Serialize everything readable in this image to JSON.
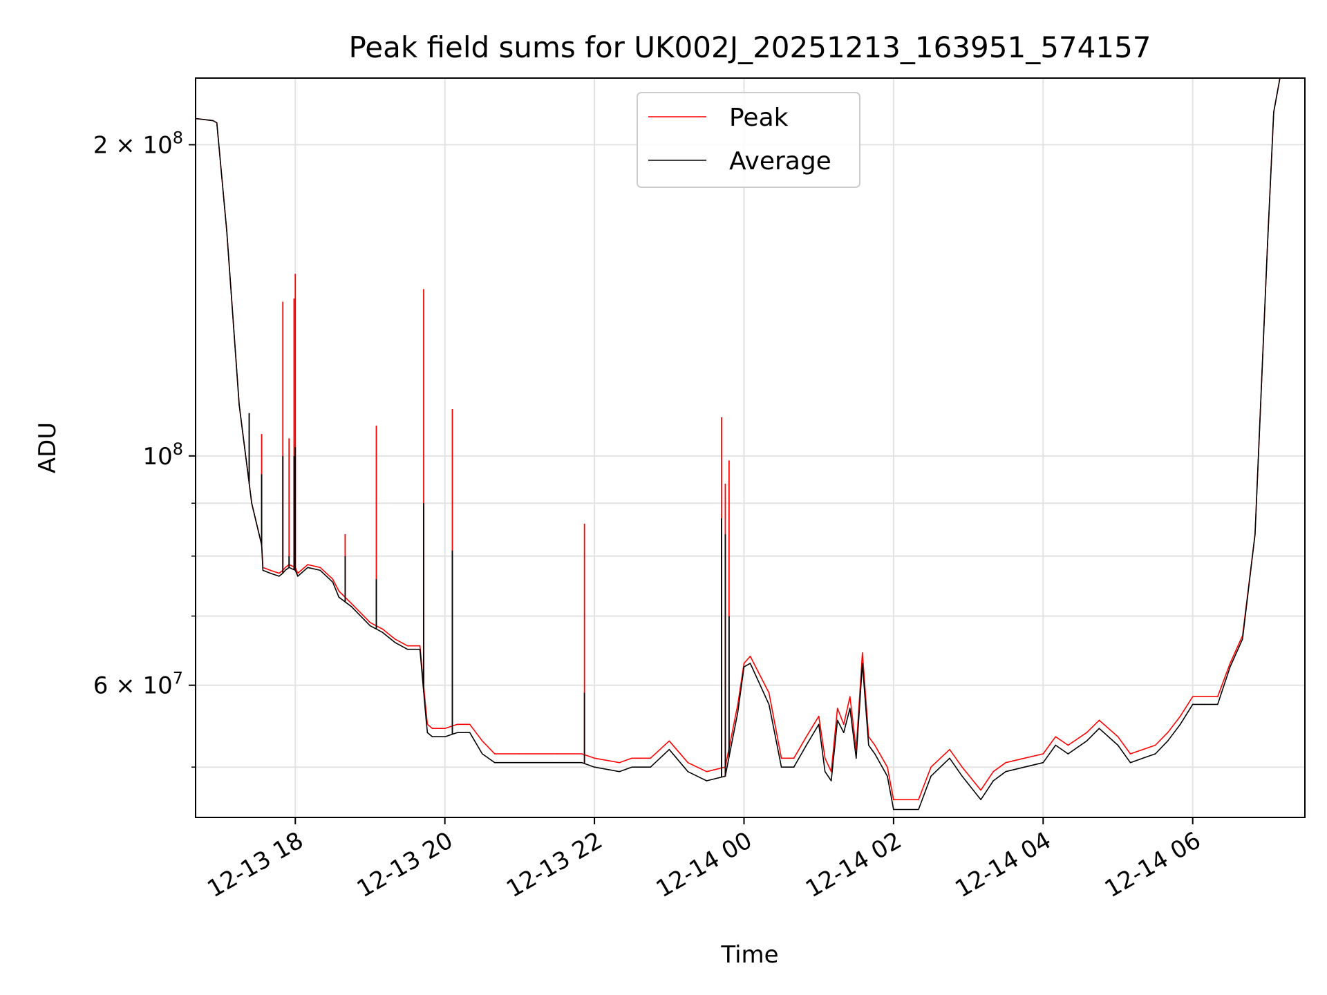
{
  "chart_data": {
    "type": "line",
    "title": "Peak field sums for UK002J_20251213_163951_574157",
    "xlabel": "Time",
    "ylabel": "ADU",
    "yscale": "log",
    "grid": true,
    "legend_position": "top-center",
    "xlim": [
      "2025-12-13 16:40",
      "2025-12-14 07:30"
    ],
    "ylim": [
      44700000,
      232000000
    ],
    "x_ticks": [
      {
        "value": "2025-12-13 18:00",
        "label": "12-13 18"
      },
      {
        "value": "2025-12-13 20:00",
        "label": "12-13 20"
      },
      {
        "value": "2025-12-13 22:00",
        "label": "12-13 22"
      },
      {
        "value": "2025-12-14 00:00",
        "label": "12-14 00"
      },
      {
        "value": "2025-12-14 02:00",
        "label": "12-14 02"
      },
      {
        "value": "2025-12-14 04:00",
        "label": "12-14 04"
      },
      {
        "value": "2025-12-14 06:00",
        "label": "12-14 06"
      }
    ],
    "y_ticks": [
      {
        "value": 60000000,
        "base": "6 × 10",
        "exp": "7"
      },
      {
        "value": 100000000,
        "base": "10",
        "exp": "8"
      },
      {
        "value": 200000000,
        "base": "2 × 10",
        "exp": "8"
      }
    ],
    "y_minor_gridlines": [
      50000000,
      70000000,
      80000000,
      90000000
    ],
    "series": [
      {
        "name": "Peak",
        "color": "#ff0000",
        "x": [
          "2025-12-13 16:40",
          "2025-12-13 16:54",
          "2025-12-13 16:57",
          "2025-12-13 17:05",
          "2025-12-13 17:15",
          "2025-12-13 17:25",
          "2025-12-13 17:33",
          "2025-12-13 17:34",
          "2025-12-13 17:40",
          "2025-12-13 17:47",
          "2025-12-13 17:50",
          "2025-12-13 17:52",
          "2025-12-13 17:55",
          "2025-12-13 18:00",
          "2025-12-13 18:02",
          "2025-12-13 18:10",
          "2025-12-13 18:20",
          "2025-12-13 18:30",
          "2025-12-13 18:35",
          "2025-12-13 18:45",
          "2025-12-13 19:00",
          "2025-12-13 19:10",
          "2025-12-13 19:20",
          "2025-12-13 19:30",
          "2025-12-13 19:40",
          "2025-12-13 19:45",
          "2025-12-13 19:46",
          "2025-12-13 19:50",
          "2025-12-13 20:00",
          "2025-12-13 20:10",
          "2025-12-13 20:20",
          "2025-12-13 20:30",
          "2025-12-13 20:40",
          "2025-12-13 21:00",
          "2025-12-13 21:30",
          "2025-12-13 21:50",
          "2025-12-13 22:00",
          "2025-12-13 22:20",
          "2025-12-13 22:30",
          "2025-12-13 22:45",
          "2025-12-13 23:00",
          "2025-12-13 23:15",
          "2025-12-13 23:30",
          "2025-12-13 23:45",
          "2025-12-13 23:55",
          "2025-12-14 00:00",
          "2025-12-14 00:05",
          "2025-12-14 00:20",
          "2025-12-14 00:30",
          "2025-12-14 00:40",
          "2025-12-14 00:50",
          "2025-12-14 01:00",
          "2025-12-14 01:05",
          "2025-12-14 01:10",
          "2025-12-14 01:15",
          "2025-12-14 01:20",
          "2025-12-14 01:25",
          "2025-12-14 01:30",
          "2025-12-14 01:35",
          "2025-12-14 01:40",
          "2025-12-14 01:45",
          "2025-12-14 01:55",
          "2025-12-14 02:00",
          "2025-12-14 02:20",
          "2025-12-14 02:30",
          "2025-12-14 02:45",
          "2025-12-14 02:55",
          "2025-12-14 03:10",
          "2025-12-14 03:20",
          "2025-12-14 03:30",
          "2025-12-14 03:45",
          "2025-12-14 04:00",
          "2025-12-14 04:10",
          "2025-12-14 04:20",
          "2025-12-14 04:35",
          "2025-12-14 04:45",
          "2025-12-14 05:00",
          "2025-12-14 05:10",
          "2025-12-14 05:20",
          "2025-12-14 05:30",
          "2025-12-14 05:40",
          "2025-12-14 05:50",
          "2025-12-14 06:00",
          "2025-12-14 06:10",
          "2025-12-14 06:20",
          "2025-12-14 06:30",
          "2025-12-14 06:40",
          "2025-12-14 06:50",
          "2025-12-14 07:00",
          "2025-12-14 07:05",
          "2025-12-14 07:10",
          "2025-12-14 07:30"
        ],
        "values": [
          212000000,
          211000000,
          210000000,
          165000000,
          112000000,
          90000000,
          82000000,
          78000000,
          77500000,
          77000000,
          77500000,
          78000000,
          78500000,
          78000000,
          77000000,
          78500000,
          78000000,
          76000000,
          74000000,
          72000000,
          69000000,
          68000000,
          66500000,
          65500000,
          65500000,
          56500000,
          55000000,
          54500000,
          54500000,
          55000000,
          55000000,
          53000000,
          51500000,
          51500000,
          51500000,
          51500000,
          51000000,
          50500000,
          51000000,
          51000000,
          53000000,
          50500000,
          49500000,
          50000000,
          57500000,
          63000000,
          64000000,
          59000000,
          51000000,
          51000000,
          53500000,
          56000000,
          51000000,
          49500000,
          57000000,
          55000000,
          58500000,
          52000000,
          64500000,
          53500000,
          52500000,
          50000000,
          46500000,
          46500000,
          50000000,
          52000000,
          50000000,
          47500000,
          49500000,
          50500000,
          51000000,
          51500000,
          53500000,
          52500000,
          54000000,
          55500000,
          53500000,
          51500000,
          52000000,
          52500000,
          54000000,
          56000000,
          58500000,
          58500000,
          58500000,
          63000000,
          67000000,
          84000000,
          160000000,
          215000000,
          232000000,
          232000000
        ]
      },
      {
        "name": "Average",
        "color": "#000000",
        "x": [
          "2025-12-13 16:40",
          "2025-12-13 16:54",
          "2025-12-13 16:57",
          "2025-12-13 17:05",
          "2025-12-13 17:15",
          "2025-12-13 17:25",
          "2025-12-13 17:33",
          "2025-12-13 17:34",
          "2025-12-13 17:40",
          "2025-12-13 17:47",
          "2025-12-13 17:50",
          "2025-12-13 17:52",
          "2025-12-13 17:55",
          "2025-12-13 18:00",
          "2025-12-13 18:02",
          "2025-12-13 18:10",
          "2025-12-13 18:20",
          "2025-12-13 18:30",
          "2025-12-13 18:35",
          "2025-12-13 18:45",
          "2025-12-13 19:00",
          "2025-12-13 19:10",
          "2025-12-13 19:20",
          "2025-12-13 19:30",
          "2025-12-13 19:40",
          "2025-12-13 19:45",
          "2025-12-13 19:46",
          "2025-12-13 19:50",
          "2025-12-13 20:00",
          "2025-12-13 20:10",
          "2025-12-13 20:20",
          "2025-12-13 20:30",
          "2025-12-13 20:40",
          "2025-12-13 21:00",
          "2025-12-13 21:30",
          "2025-12-13 21:50",
          "2025-12-13 22:00",
          "2025-12-13 22:20",
          "2025-12-13 22:30",
          "2025-12-13 22:45",
          "2025-12-13 23:00",
          "2025-12-13 23:15",
          "2025-12-13 23:30",
          "2025-12-13 23:45",
          "2025-12-13 23:55",
          "2025-12-14 00:00",
          "2025-12-14 00:05",
          "2025-12-14 00:20",
          "2025-12-14 00:30",
          "2025-12-14 00:40",
          "2025-12-14 00:50",
          "2025-12-14 01:00",
          "2025-12-14 01:05",
          "2025-12-14 01:10",
          "2025-12-14 01:15",
          "2025-12-14 01:20",
          "2025-12-14 01:25",
          "2025-12-14 01:30",
          "2025-12-14 01:35",
          "2025-12-14 01:40",
          "2025-12-14 01:45",
          "2025-12-14 01:55",
          "2025-12-14 02:00",
          "2025-12-14 02:20",
          "2025-12-14 02:30",
          "2025-12-14 02:45",
          "2025-12-14 02:55",
          "2025-12-14 03:10",
          "2025-12-14 03:20",
          "2025-12-14 03:30",
          "2025-12-14 03:45",
          "2025-12-14 04:00",
          "2025-12-14 04:10",
          "2025-12-14 04:20",
          "2025-12-14 04:35",
          "2025-12-14 04:45",
          "2025-12-14 05:00",
          "2025-12-14 05:10",
          "2025-12-14 05:20",
          "2025-12-14 05:30",
          "2025-12-14 05:40",
          "2025-12-14 05:50",
          "2025-12-14 06:00",
          "2025-12-14 06:10",
          "2025-12-14 06:20",
          "2025-12-14 06:30",
          "2025-12-14 06:40",
          "2025-12-14 06:50",
          "2025-12-14 07:00",
          "2025-12-14 07:05",
          "2025-12-14 07:10",
          "2025-12-14 07:30"
        ],
        "values": [
          212000000,
          211000000,
          210000000,
          165000000,
          112000000,
          90000000,
          82000000,
          77500000,
          77000000,
          76500000,
          77000000,
          77500000,
          78000000,
          77500000,
          76500000,
          78000000,
          77500000,
          75500000,
          73000000,
          71500000,
          68500000,
          67500000,
          66000000,
          65000000,
          65000000,
          55500000,
          54000000,
          53500000,
          53500000,
          54000000,
          54000000,
          51500000,
          50500000,
          50500000,
          50500000,
          50500000,
          50000000,
          49500000,
          50000000,
          50000000,
          52000000,
          49500000,
          48500000,
          49000000,
          56500000,
          62500000,
          63000000,
          57500000,
          50000000,
          50000000,
          52500000,
          55000000,
          49500000,
          48500000,
          55500000,
          54000000,
          57000000,
          51000000,
          63000000,
          52500000,
          51500000,
          49000000,
          45500000,
          45500000,
          49000000,
          51000000,
          49000000,
          46500000,
          48500000,
          49500000,
          50000000,
          50500000,
          52500000,
          51500000,
          53000000,
          54500000,
          52500000,
          50500000,
          51000000,
          51500000,
          53000000,
          55000000,
          57500000,
          57500000,
          57500000,
          62500000,
          66500000,
          84000000,
          160000000,
          215000000,
          232000000,
          232000000
        ]
      }
    ],
    "spikes": [
      {
        "x": "2025-12-13 17:23",
        "peak": 110000000,
        "average": 110000000
      },
      {
        "x": "2025-12-13 17:33",
        "peak": 105000000,
        "average": 96000000
      },
      {
        "x": "2025-12-13 17:50",
        "peak": 141000000,
        "average": 100000000
      },
      {
        "x": "2025-12-13 17:55",
        "peak": 104000000,
        "average": 80000000
      },
      {
        "x": "2025-12-13 17:59",
        "peak": 142000000,
        "average": 100000000
      },
      {
        "x": "2025-12-13 18:00",
        "peak": 150000000,
        "average": 102000000
      },
      {
        "x": "2025-12-13 18:40",
        "peak": 84000000,
        "average": 80000000
      },
      {
        "x": "2025-12-13 19:05",
        "peak": 107000000,
        "average": 76000000
      },
      {
        "x": "2025-12-13 19:43",
        "peak": 145000000,
        "average": 90000000
      },
      {
        "x": "2025-12-13 20:06",
        "peak": 111000000,
        "average": 81000000
      },
      {
        "x": "2025-12-13 21:52",
        "peak": 86000000,
        "average": 59000000
      },
      {
        "x": "2025-12-13 23:42",
        "peak": 109000000,
        "average": 87000000
      },
      {
        "x": "2025-12-13 23:45",
        "peak": 94000000,
        "average": 84000000
      },
      {
        "x": "2025-12-13 23:48",
        "peak": 99000000,
        "average": 70000000
      }
    ]
  }
}
